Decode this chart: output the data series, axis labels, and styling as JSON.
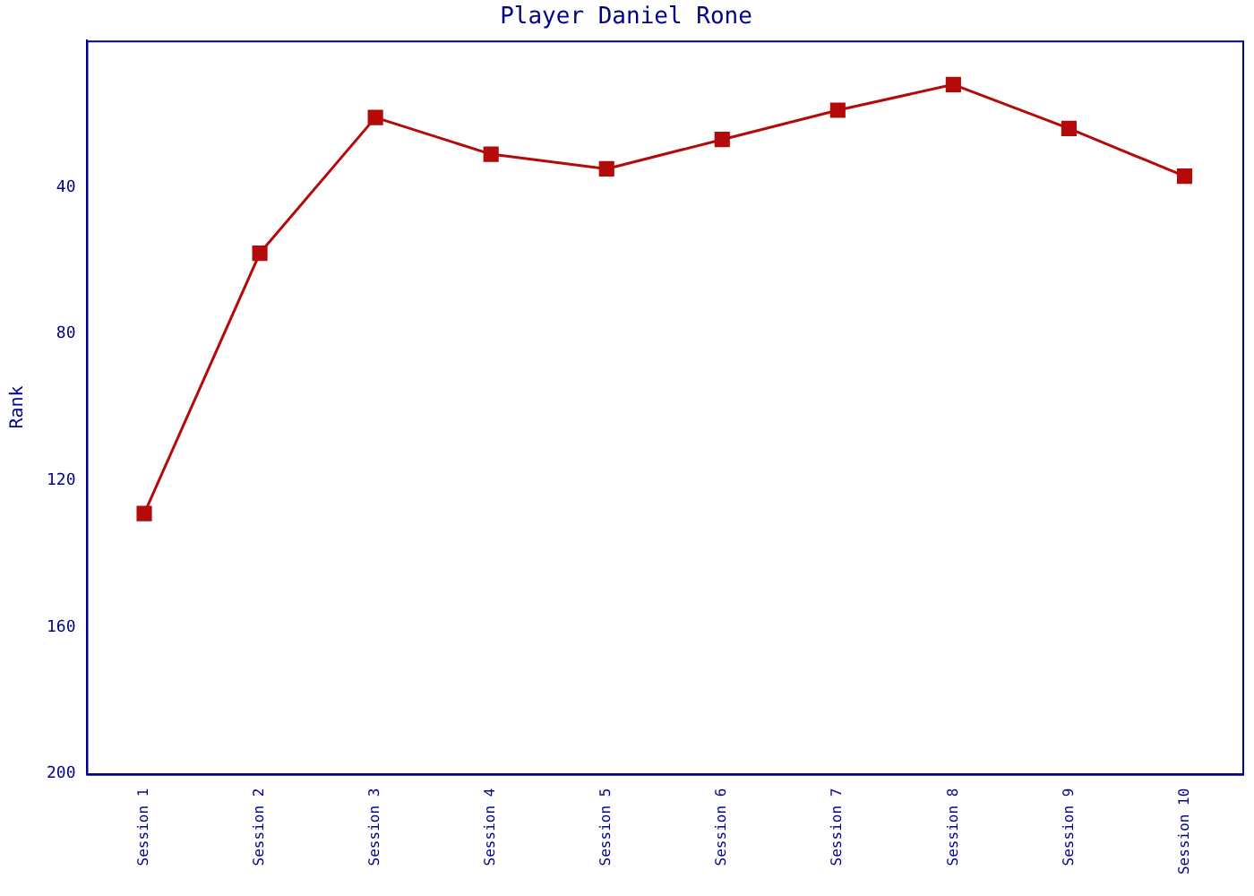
{
  "chart_data": {
    "type": "line",
    "title": "Player Daniel Rone",
    "ylabel": "Rank",
    "categories": [
      "Session 1",
      "Session 2",
      "Session 3",
      "Session 4",
      "Session 5",
      "Session 6",
      "Session 7",
      "Session 8",
      "Session 9",
      "Session 10"
    ],
    "series": [
      {
        "color": "#b40a0a",
        "values": [
          129,
          58,
          21,
          31,
          35,
          27,
          19,
          12,
          24,
          37
        ]
      }
    ],
    "ylim": [
      200,
      0
    ],
    "yticks": [
      40,
      80,
      120,
      160,
      200
    ],
    "grid": false,
    "legend": false,
    "marker": "square",
    "line_style": "solid"
  }
}
